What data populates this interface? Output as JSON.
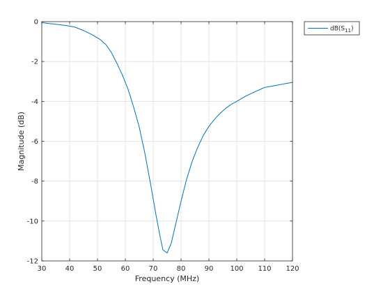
{
  "chart_data": {
    "type": "line",
    "title": "",
    "xlabel": "Frequency (MHz)",
    "ylabel": "Magnitude (dB)",
    "xlim": [
      30,
      120
    ],
    "ylim": [
      -12,
      0
    ],
    "xticks": [
      30,
      40,
      50,
      60,
      70,
      80,
      90,
      100,
      110,
      120
    ],
    "yticks": [
      0,
      -2,
      -4,
      -6,
      -8,
      -10,
      -12
    ],
    "grid": true,
    "legend_position": "outside-top-right",
    "series": [
      {
        "name": "dB(S",
        "name_sub": "11",
        "name_suffix": ")",
        "color": "#0072bd",
        "x": [
          30,
          33,
          36,
          39,
          42,
          45,
          48,
          51,
          53,
          55,
          57,
          59,
          61,
          63,
          65,
          67,
          69,
          71,
          72.5,
          73.5,
          75,
          76.5,
          78,
          80,
          82,
          84,
          86,
          88,
          90,
          92,
          94,
          96,
          98,
          100,
          103,
          106,
          110,
          114,
          117,
          120
        ],
        "y": [
          -0.05,
          -0.1,
          -0.15,
          -0.2,
          -0.28,
          -0.45,
          -0.65,
          -0.9,
          -1.15,
          -1.55,
          -2.1,
          -2.7,
          -3.4,
          -4.3,
          -5.3,
          -6.6,
          -8.1,
          -9.7,
          -10.8,
          -11.45,
          -11.6,
          -11.1,
          -10.2,
          -9.0,
          -7.9,
          -7.0,
          -6.3,
          -5.7,
          -5.25,
          -4.9,
          -4.6,
          -4.35,
          -4.15,
          -4.0,
          -3.75,
          -3.55,
          -3.3,
          -3.2,
          -3.12,
          -3.05
        ]
      }
    ]
  }
}
